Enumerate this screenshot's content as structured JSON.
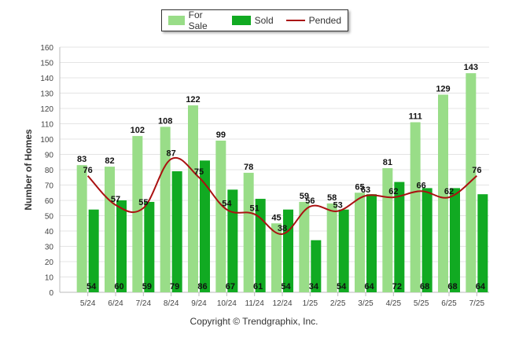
{
  "chart_data": {
    "type": "bar",
    "categories": [
      "5/24",
      "6/24",
      "7/24",
      "8/24",
      "9/24",
      "10/24",
      "11/24",
      "12/24",
      "1/25",
      "2/25",
      "3/25",
      "4/25",
      "5/25",
      "6/25",
      "7/25"
    ],
    "series": [
      {
        "name": "For Sale",
        "kind": "bar",
        "color": "#99dd88",
        "values": [
          83,
          82,
          102,
          108,
          122,
          99,
          78,
          45,
          59,
          58,
          65,
          81,
          111,
          129,
          143
        ]
      },
      {
        "name": "Sold",
        "kind": "bar",
        "color": "#11aa22",
        "values": [
          54,
          60,
          59,
          79,
          86,
          67,
          61,
          54,
          34,
          54,
          64,
          72,
          68,
          68,
          64
        ]
      },
      {
        "name": "Pended",
        "kind": "line",
        "color": "#aa1111",
        "values": [
          76,
          57,
          55,
          87,
          75,
          54,
          51,
          38,
          56,
          53,
          63,
          62,
          66,
          62,
          76
        ]
      }
    ],
    "ylabel": "Number of Homes",
    "xlabel": "",
    "ylim": [
      0,
      160
    ],
    "yticks": [
      0,
      10,
      20,
      30,
      40,
      50,
      60,
      70,
      80,
      90,
      100,
      110,
      120,
      130,
      140,
      150,
      160
    ],
    "grid": true,
    "legend_position": "top"
  },
  "credit": "Copyright © Trendgraphix, Inc."
}
